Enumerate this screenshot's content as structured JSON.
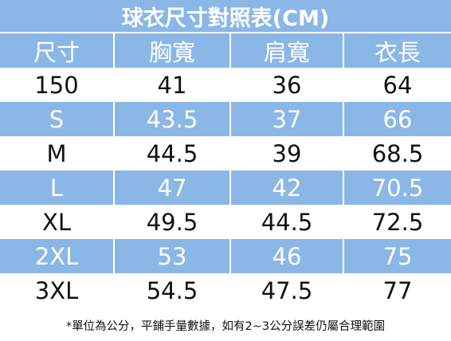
{
  "header": {
    "title": "球衣尺寸對照表(CM)"
  },
  "table": {
    "columns": [
      "尺寸",
      "胸寬",
      "肩寬",
      "衣長"
    ],
    "rows": [
      [
        "150",
        "41",
        "36",
        "64"
      ],
      [
        "S",
        "43.5",
        "37",
        "66"
      ],
      [
        "M",
        "44.5",
        "39",
        "68.5"
      ],
      [
        "L",
        "47",
        "42",
        "70.5"
      ],
      [
        "XL",
        "49.5",
        "44.5",
        "72.5"
      ],
      [
        "2XL",
        "53",
        "46",
        "75"
      ],
      [
        "3XL",
        "54.5",
        "47.5",
        "77"
      ]
    ]
  },
  "footnote": "*單位為公分，平鋪手量數據，如有2~3公分誤差仍屬合理範圍"
}
